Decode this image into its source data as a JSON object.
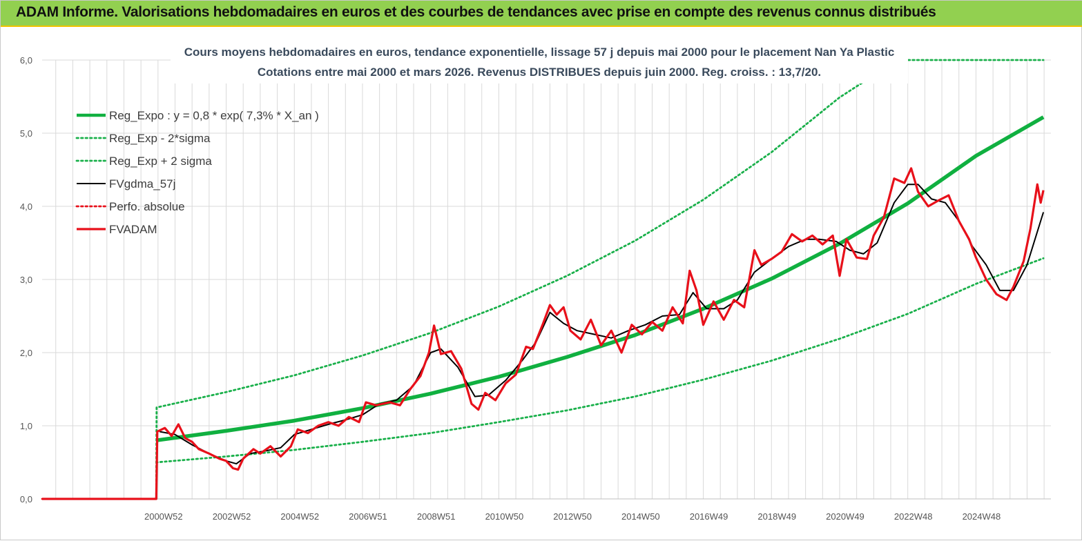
{
  "header": {
    "title": "ADAM Informe. Valorisations hebdomadaires en euros et des courbes de tendances avec prise en compte des revenus connus distribués"
  },
  "colors": {
    "header_bg": "#92d050",
    "header_border": "#f2c200",
    "reg_expo": "#10b040",
    "sigma": "#19b04a",
    "fvgdma": "#000000",
    "fvadam": "#e8101a",
    "perfo": "#e8101a",
    "grid": "#d9d9d9"
  },
  "chart_data": {
    "type": "line",
    "title": "Cours moyens hebdomadaires en euros, tendance exponentielle, lissage 57 j depuis mai 2000 pour le placement Nan Ya Plastic",
    "subtitle": "Cotations entre mai 2000 et mars 2026. Revenus DISTRIBUES depuis juin 2000. Reg. croiss. : 13,7/20.",
    "xlabel": "",
    "ylabel": "",
    "ylim": [
      0,
      6
    ],
    "yticks": [
      "0,0",
      "1,0",
      "2,0",
      "3,0",
      "4,0",
      "5,0",
      "6,0"
    ],
    "xlim": [
      1996.6,
      2026.2
    ],
    "xticks": [
      {
        "x": 2000.0,
        "label": "2000W52"
      },
      {
        "x": 2002.0,
        "label": "2002W52"
      },
      {
        "x": 2004.0,
        "label": "2004W52"
      },
      {
        "x": 2006.0,
        "label": "2006W51"
      },
      {
        "x": 2008.0,
        "label": "2008W51"
      },
      {
        "x": 2010.0,
        "label": "2010W50"
      },
      {
        "x": 2012.0,
        "label": "2012W50"
      },
      {
        "x": 2014.0,
        "label": "2014W50"
      },
      {
        "x": 2016.0,
        "label": "2016W49"
      },
      {
        "x": 2018.0,
        "label": "2018W49"
      },
      {
        "x": 2020.0,
        "label": "2020W49"
      },
      {
        "x": 2022.0,
        "label": "2022W48"
      },
      {
        "x": 2024.0,
        "label": "2024W48"
      }
    ],
    "grid": true,
    "legend_position": "top-left",
    "series": [
      {
        "name": "Reg_Expo : y = 0,8 * exp( 7,3% *  X_an )",
        "style": "solid-thick",
        "color": "#10b040",
        "points": [
          [
            1999.95,
            0.8
          ],
          [
            2002,
            0.93
          ],
          [
            2004,
            1.07
          ],
          [
            2006,
            1.24
          ],
          [
            2008,
            1.44
          ],
          [
            2010,
            1.67
          ],
          [
            2012,
            1.94
          ],
          [
            2014,
            2.24
          ],
          [
            2016,
            2.6
          ],
          [
            2018,
            3.01
          ],
          [
            2020,
            3.49
          ],
          [
            2022,
            4.04
          ],
          [
            2024,
            4.69
          ],
          [
            2025.98,
            5.22
          ]
        ]
      },
      {
        "name": "Reg_Exp - 2*sigma",
        "style": "dotted",
        "color": "#19b04a",
        "points": [
          [
            1999.95,
            0.0
          ],
          [
            1999.96,
            0.5
          ],
          [
            2002,
            0.58
          ],
          [
            2004,
            0.67
          ],
          [
            2006,
            0.78
          ],
          [
            2008,
            0.9
          ],
          [
            2010,
            1.05
          ],
          [
            2012,
            1.21
          ],
          [
            2014,
            1.4
          ],
          [
            2016,
            1.63
          ],
          [
            2018,
            1.89
          ],
          [
            2020,
            2.19
          ],
          [
            2022,
            2.53
          ],
          [
            2024,
            2.94
          ],
          [
            2025.98,
            3.29
          ]
        ]
      },
      {
        "name": "Reg_Exp + 2 sigma",
        "style": "dotted",
        "color": "#19b04a",
        "points": [
          [
            1999.95,
            0.0
          ],
          [
            1999.96,
            1.25
          ],
          [
            2002,
            1.46
          ],
          [
            2004,
            1.69
          ],
          [
            2006,
            1.96
          ],
          [
            2008,
            2.27
          ],
          [
            2010,
            2.63
          ],
          [
            2012,
            3.05
          ],
          [
            2014,
            3.53
          ],
          [
            2016,
            4.09
          ],
          [
            2018,
            4.74
          ],
          [
            2020,
            5.49
          ],
          [
            2020.7,
            5.7
          ],
          [
            2021.9,
            6.0
          ],
          [
            2025.98,
            6.0
          ]
        ]
      },
      {
        "name": "FVgdma_57j",
        "style": "solid-thin",
        "color": "#000000",
        "points": [
          [
            2000.05,
            0.92
          ],
          [
            2000.5,
            0.88
          ],
          [
            2001,
            0.74
          ],
          [
            2001.5,
            0.62
          ],
          [
            2002,
            0.52
          ],
          [
            2002.3,
            0.48
          ],
          [
            2002.7,
            0.62
          ],
          [
            2003.2,
            0.66
          ],
          [
            2003.6,
            0.7
          ],
          [
            2004,
            0.88
          ],
          [
            2004.5,
            0.95
          ],
          [
            2005,
            1.02
          ],
          [
            2005.5,
            1.08
          ],
          [
            2006,
            1.15
          ],
          [
            2006.5,
            1.3
          ],
          [
            2007,
            1.35
          ],
          [
            2007.5,
            1.55
          ],
          [
            2008,
            2.0
          ],
          [
            2008.3,
            2.05
          ],
          [
            2008.8,
            1.8
          ],
          [
            2009.3,
            1.4
          ],
          [
            2009.7,
            1.42
          ],
          [
            2010.2,
            1.62
          ],
          [
            2010.7,
            1.9
          ],
          [
            2011.1,
            2.15
          ],
          [
            2011.5,
            2.55
          ],
          [
            2011.9,
            2.4
          ],
          [
            2012.3,
            2.3
          ],
          [
            2012.8,
            2.25
          ],
          [
            2013.3,
            2.2
          ],
          [
            2013.8,
            2.3
          ],
          [
            2014.3,
            2.38
          ],
          [
            2014.8,
            2.5
          ],
          [
            2015.3,
            2.52
          ],
          [
            2015.7,
            2.82
          ],
          [
            2016.1,
            2.6
          ],
          [
            2016.6,
            2.6
          ],
          [
            2017.0,
            2.72
          ],
          [
            2017.5,
            3.1
          ],
          [
            2018.0,
            3.28
          ],
          [
            2018.5,
            3.45
          ],
          [
            2019.0,
            3.55
          ],
          [
            2019.4,
            3.55
          ],
          [
            2019.9,
            3.52
          ],
          [
            2020.3,
            3.4
          ],
          [
            2020.7,
            3.35
          ],
          [
            2021.1,
            3.5
          ],
          [
            2021.6,
            4.05
          ],
          [
            2022.0,
            4.3
          ],
          [
            2022.3,
            4.3
          ],
          [
            2022.7,
            4.1
          ],
          [
            2023.1,
            4.05
          ],
          [
            2023.5,
            3.8
          ],
          [
            2023.9,
            3.45
          ],
          [
            2024.3,
            3.2
          ],
          [
            2024.7,
            2.85
          ],
          [
            2025.1,
            2.85
          ],
          [
            2025.5,
            3.2
          ],
          [
            2025.98,
            3.92
          ]
        ]
      },
      {
        "name": "Perfo. absolue",
        "style": "dotted",
        "color": "#e8101a",
        "points": [
          [
            1996.6,
            0.0
          ],
          [
            1999.95,
            0.0
          ]
        ]
      },
      {
        "name": "FVADAM",
        "style": "solid-medium",
        "color": "#e8101a",
        "points": [
          [
            1996.6,
            0.0
          ],
          [
            1999.95,
            0.0
          ],
          [
            1999.98,
            0.92
          ],
          [
            2000.2,
            0.97
          ],
          [
            2000.4,
            0.86
          ],
          [
            2000.6,
            1.02
          ],
          [
            2000.8,
            0.83
          ],
          [
            2001.0,
            0.78
          ],
          [
            2001.2,
            0.68
          ],
          [
            2001.5,
            0.62
          ],
          [
            2001.8,
            0.55
          ],
          [
            2002.0,
            0.52
          ],
          [
            2002.2,
            0.42
          ],
          [
            2002.35,
            0.4
          ],
          [
            2002.5,
            0.55
          ],
          [
            2002.8,
            0.68
          ],
          [
            2003.0,
            0.62
          ],
          [
            2003.3,
            0.72
          ],
          [
            2003.6,
            0.58
          ],
          [
            2003.9,
            0.72
          ],
          [
            2004.1,
            0.95
          ],
          [
            2004.4,
            0.9
          ],
          [
            2004.7,
            1.0
          ],
          [
            2005.0,
            1.05
          ],
          [
            2005.3,
            1.0
          ],
          [
            2005.6,
            1.12
          ],
          [
            2005.9,
            1.05
          ],
          [
            2006.1,
            1.32
          ],
          [
            2006.4,
            1.28
          ],
          [
            2006.8,
            1.32
          ],
          [
            2007.1,
            1.28
          ],
          [
            2007.4,
            1.5
          ],
          [
            2007.7,
            1.68
          ],
          [
            2007.95,
            2.0
          ],
          [
            2008.1,
            2.37
          ],
          [
            2008.3,
            1.98
          ],
          [
            2008.6,
            2.02
          ],
          [
            2008.9,
            1.78
          ],
          [
            2009.2,
            1.3
          ],
          [
            2009.4,
            1.22
          ],
          [
            2009.6,
            1.45
          ],
          [
            2009.9,
            1.35
          ],
          [
            2010.2,
            1.58
          ],
          [
            2010.5,
            1.7
          ],
          [
            2010.8,
            2.08
          ],
          [
            2011.0,
            2.05
          ],
          [
            2011.3,
            2.4
          ],
          [
            2011.5,
            2.65
          ],
          [
            2011.7,
            2.52
          ],
          [
            2011.9,
            2.62
          ],
          [
            2012.1,
            2.3
          ],
          [
            2012.4,
            2.18
          ],
          [
            2012.7,
            2.45
          ],
          [
            2013.0,
            2.1
          ],
          [
            2013.3,
            2.3
          ],
          [
            2013.6,
            2.0
          ],
          [
            2013.9,
            2.38
          ],
          [
            2014.2,
            2.25
          ],
          [
            2014.5,
            2.42
          ],
          [
            2014.8,
            2.3
          ],
          [
            2015.1,
            2.62
          ],
          [
            2015.4,
            2.4
          ],
          [
            2015.6,
            3.12
          ],
          [
            2015.8,
            2.85
          ],
          [
            2016.0,
            2.38
          ],
          [
            2016.3,
            2.7
          ],
          [
            2016.6,
            2.45
          ],
          [
            2016.9,
            2.72
          ],
          [
            2017.2,
            2.62
          ],
          [
            2017.5,
            3.4
          ],
          [
            2017.7,
            3.2
          ],
          [
            2018.0,
            3.28
          ],
          [
            2018.3,
            3.38
          ],
          [
            2018.6,
            3.62
          ],
          [
            2018.9,
            3.52
          ],
          [
            2019.2,
            3.6
          ],
          [
            2019.5,
            3.48
          ],
          [
            2019.8,
            3.6
          ],
          [
            2020.0,
            3.05
          ],
          [
            2020.2,
            3.55
          ],
          [
            2020.5,
            3.3
          ],
          [
            2020.8,
            3.28
          ],
          [
            2021.0,
            3.6
          ],
          [
            2021.3,
            3.85
          ],
          [
            2021.6,
            4.38
          ],
          [
            2021.9,
            4.32
          ],
          [
            2022.1,
            4.52
          ],
          [
            2022.3,
            4.2
          ],
          [
            2022.6,
            4.0
          ],
          [
            2022.9,
            4.08
          ],
          [
            2023.2,
            4.15
          ],
          [
            2023.5,
            3.8
          ],
          [
            2023.8,
            3.55
          ],
          [
            2024.0,
            3.3
          ],
          [
            2024.3,
            3.0
          ],
          [
            2024.6,
            2.8
          ],
          [
            2024.9,
            2.72
          ],
          [
            2025.1,
            2.9
          ],
          [
            2025.4,
            3.25
          ],
          [
            2025.6,
            3.7
          ],
          [
            2025.8,
            4.3
          ],
          [
            2025.9,
            4.05
          ],
          [
            2025.98,
            4.22
          ]
        ]
      }
    ]
  }
}
